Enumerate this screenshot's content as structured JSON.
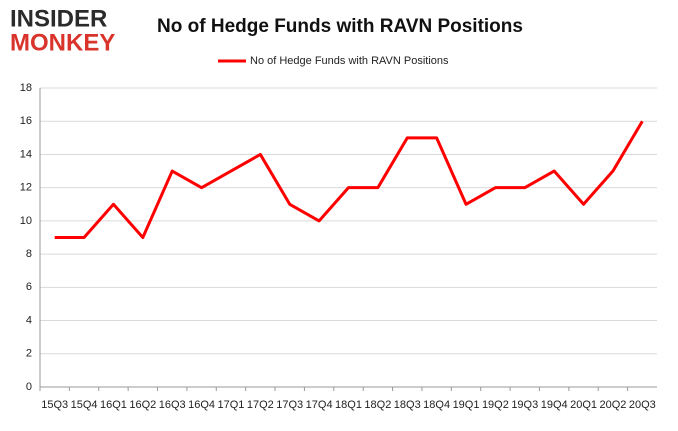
{
  "logo": {
    "line1": "INSIDER",
    "line2": "MONKEY"
  },
  "chart_data": {
    "type": "line",
    "title": "No of Hedge Funds with RAVN Positions",
    "categories": [
      "15Q3",
      "15Q4",
      "16Q1",
      "16Q2",
      "16Q3",
      "16Q4",
      "17Q1",
      "17Q2",
      "17Q3",
      "17Q4",
      "18Q1",
      "18Q2",
      "18Q3",
      "18Q4",
      "19Q1",
      "19Q2",
      "19Q3",
      "19Q4",
      "20Q1",
      "20Q2",
      "20Q3"
    ],
    "series": [
      {
        "name": "No of Hedge Funds with RAVN Positions",
        "color": "#ff0000",
        "values": [
          9,
          9,
          11,
          9,
          13,
          12,
          13,
          14,
          11,
          10,
          12,
          12,
          15,
          15,
          11,
          12,
          12,
          13,
          11,
          13,
          16
        ]
      }
    ],
    "ylim": [
      0,
      18
    ],
    "yticks": [
      0,
      2,
      4,
      6,
      8,
      10,
      12,
      14,
      16,
      18
    ],
    "grid": true,
    "legend": "top"
  }
}
